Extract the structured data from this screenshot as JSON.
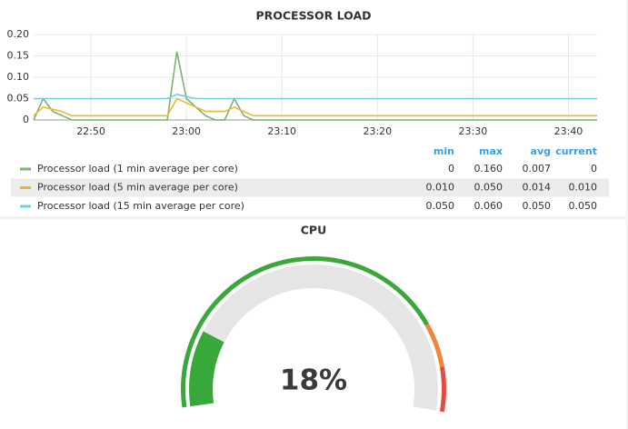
{
  "chart_data": [
    {
      "type": "line",
      "title": "PROCESSOR LOAD",
      "x": [
        "22:44",
        "22:45",
        "22:46",
        "22:47",
        "22:48",
        "22:58",
        "22:59",
        "23:00",
        "23:01",
        "23:02",
        "23:03",
        "23:04",
        "23:05",
        "23:06",
        "23:07",
        "23:43"
      ],
      "xlim": [
        "22:44",
        "23:43"
      ],
      "xticks": [
        "22:50",
        "23:00",
        "23:10",
        "23:20",
        "23:30",
        "23:40"
      ],
      "ylim": [
        0,
        0.2
      ],
      "yticks": [
        0,
        0.05,
        {
          "value": 0.1,
          "label": "0.10"
        },
        0.15,
        {
          "value": 0.2,
          "label": "0.20"
        }
      ],
      "grid": true,
      "legend_columns": [
        "min",
        "max",
        "avg",
        "current"
      ],
      "series": [
        {
          "name": "Processor load (1 min average per core)",
          "color": "#7eb26d",
          "values": [
            0,
            0.05,
            0.02,
            0.01,
            0,
            0,
            0.16,
            0.05,
            0.03,
            0.01,
            0,
            0,
            0.05,
            0.01,
            0,
            0
          ],
          "stats": [
            "0",
            "0.160",
            "0.007",
            "0"
          ]
        },
        {
          "name": "Processor load (5 min average per core)",
          "color": "#eab839",
          "values": [
            0.01,
            0.03,
            0.025,
            0.02,
            0.01,
            0.01,
            0.05,
            0.04,
            0.03,
            0.02,
            0.02,
            0.02,
            0.03,
            0.02,
            0.01,
            0.01
          ],
          "stats": [
            "0.010",
            "0.050",
            "0.014",
            "0.010"
          ]
        },
        {
          "name": "Processor load (15 min average per core)",
          "color": "#6ed0e0",
          "values": [
            0.05,
            0.05,
            0.05,
            0.05,
            0.05,
            0.05,
            0.06,
            0.055,
            0.05,
            0.05,
            0.05,
            0.05,
            0.05,
            0.05,
            0.05,
            0.05
          ],
          "stats": [
            "0.050",
            "0.060",
            "0.050",
            "0.050"
          ]
        }
      ]
    },
    {
      "type": "gauge",
      "title": "CPU",
      "value": 18,
      "value_label": "18%",
      "ylim": [
        0,
        100
      ],
      "thresholds": [
        80,
        90
      ],
      "colors": [
        "#37a839",
        "#ef843c",
        "#e24d42"
      ]
    }
  ]
}
